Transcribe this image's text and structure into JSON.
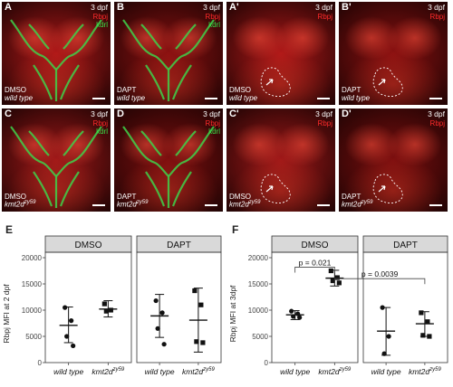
{
  "panels": [
    {
      "letter": "A",
      "dpf": "3 dpf",
      "ch1": "Rbpj",
      "ch2": "kdrl",
      "cond": "DMSO",
      "geno": "wild type",
      "merge": true,
      "base": "#b01818",
      "outline": false
    },
    {
      "letter": "B",
      "dpf": "3 dpf",
      "ch1": "Rbpj",
      "ch2": "kdrl",
      "cond": "DAPT",
      "geno": "wild type",
      "merge": true,
      "base": "#8a1010",
      "outline": false
    },
    {
      "letter": "A'",
      "dpf": "3 dpf",
      "ch1": "Rbpj",
      "ch2": "",
      "cond": "DMSO",
      "geno": "wild type",
      "merge": false,
      "base": "#b01818",
      "outline": true
    },
    {
      "letter": "B'",
      "dpf": "3 dpf",
      "ch1": "Rbpj",
      "ch2": "",
      "cond": "DAPT",
      "geno": "wild type",
      "merge": false,
      "base": "#8a1010",
      "outline": true
    },
    {
      "letter": "C",
      "dpf": "3 dpf",
      "ch1": "Rbpj",
      "ch2": "kdrl",
      "cond": "DMSO",
      "geno": "kmt2d",
      "geno_sup": "zy59",
      "merge": true,
      "base": "#a01818",
      "outline": false
    },
    {
      "letter": "D",
      "dpf": "3 dpf",
      "ch1": "Rbpj",
      "ch2": "kdrl",
      "cond": "DAPT",
      "geno": "kmt2d",
      "geno_sup": "zy59",
      "merge": true,
      "base": "#7c0e0e",
      "outline": false
    },
    {
      "letter": "C'",
      "dpf": "3 dpf",
      "ch1": "Rbpj",
      "ch2": "",
      "cond": "DMSO",
      "geno": "kmt2d",
      "geno_sup": "zy59",
      "merge": false,
      "base": "#a01818",
      "outline": true
    },
    {
      "letter": "D'",
      "dpf": "3 dpf",
      "ch1": "Rbpj",
      "ch2": "",
      "cond": "DAPT",
      "geno": "kmt2d",
      "geno_sup": "zy59",
      "merge": false,
      "base": "#7c0e0e",
      "outline": true
    }
  ],
  "chart_data": [
    {
      "type": "scatter",
      "letter": "E",
      "ylabel": "Rbpj MFI at 2 dpf",
      "ylim": [
        0,
        20000
      ],
      "yticks": [
        "0",
        "5000",
        "10000",
        "15000",
        "20000"
      ],
      "facets": [
        "DMSO",
        "DAPT"
      ],
      "categories": [
        {
          "label": "wild type"
        },
        {
          "label": "kmt2d",
          "sup": "zy59"
        }
      ],
      "groups": [
        {
          "facet": 0,
          "cat": 0,
          "marker": "circle",
          "points": [
            10500,
            8000,
            5000,
            3200
          ],
          "mean": 7100,
          "err": [
            3800,
            10600
          ]
        },
        {
          "facet": 0,
          "cat": 1,
          "marker": "square",
          "points": [
            11200,
            10000,
            9800
          ],
          "mean": 10200,
          "err": [
            8700,
            11800
          ]
        },
        {
          "facet": 1,
          "cat": 0,
          "marker": "circle",
          "points": [
            11800,
            9500,
            6500,
            3500
          ],
          "mean": 8900,
          "err": [
            4800,
            13000
          ]
        },
        {
          "facet": 1,
          "cat": 1,
          "marker": "square",
          "points": [
            13700,
            11000,
            4000,
            3800
          ],
          "mean": 8100,
          "err": [
            2000,
            14200
          ]
        }
      ],
      "annotations": []
    },
    {
      "type": "scatter",
      "letter": "F",
      "ylabel": "Rbpj MFI at 3dpf",
      "ylim": [
        0,
        20000
      ],
      "yticks": [
        "0",
        "5000",
        "10000",
        "15000",
        "20000"
      ],
      "facets": [
        "DMSO",
        "DAPT"
      ],
      "categories": [
        {
          "label": "wild type"
        },
        {
          "label": "kmt2d",
          "sup": "zy59"
        }
      ],
      "groups": [
        {
          "facet": 0,
          "cat": 0,
          "marker": "circle",
          "points": [
            9800,
            9300,
            8800,
            8600
          ],
          "mean": 9100,
          "err": [
            8200,
            9900
          ]
        },
        {
          "facet": 0,
          "cat": 1,
          "marker": "square",
          "points": [
            17500,
            16200,
            15600,
            15200
          ],
          "mean": 16100,
          "err": [
            14600,
            17600
          ]
        },
        {
          "facet": 1,
          "cat": 0,
          "marker": "circle",
          "points": [
            10500,
            5000,
            1700
          ],
          "mean": 6000,
          "err": [
            1400,
            10500
          ]
        },
        {
          "facet": 1,
          "cat": 1,
          "marker": "square",
          "points": [
            9500,
            7800,
            5200,
            5000
          ],
          "mean": 7400,
          "err": [
            5000,
            9700
          ]
        }
      ],
      "annotations": [
        {
          "text": "p = 0.021",
          "from": [
            0,
            0
          ],
          "to": [
            0,
            1
          ],
          "y": 18200
        },
        {
          "text": "p = 0.0039",
          "from": [
            0,
            1
          ],
          "to": [
            1,
            1
          ],
          "y": 16000
        }
      ]
    }
  ]
}
